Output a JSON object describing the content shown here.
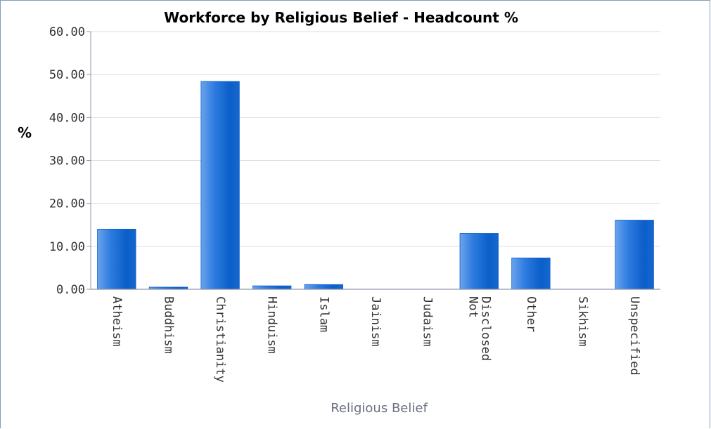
{
  "chart_data": {
    "type": "bar",
    "title": "Workforce by Religious Belief - Headcount %",
    "xlabel": "Religious Belief",
    "ylabel": "%",
    "ylim": [
      0,
      60
    ],
    "yticks": [
      "0.00",
      "10.00",
      "20.00",
      "30.00",
      "40.00",
      "50.00",
      "60.00"
    ],
    "grid": true,
    "legend": "none",
    "categories": [
      [
        "Atheism"
      ],
      [
        "Buddhism"
      ],
      [
        "Christianity"
      ],
      [
        "Hinduism"
      ],
      [
        "Islam"
      ],
      [
        "Jainism"
      ],
      [
        "Judaism"
      ],
      [
        "Not",
        "Disclosed"
      ],
      [
        "Other"
      ],
      [
        "Sikhism"
      ],
      [
        "Unspecified"
      ]
    ],
    "values": [
      14.0,
      0.5,
      48.4,
      0.8,
      1.1,
      0.0,
      0.0,
      13.0,
      7.3,
      0.0,
      16.1
    ],
    "colors": {
      "bar_dark": "#0b5fc8",
      "bar_light": "#6aa3ec",
      "grid": "#dedede",
      "axis": "#8f97aa",
      "frame": "#7f9db9"
    }
  }
}
